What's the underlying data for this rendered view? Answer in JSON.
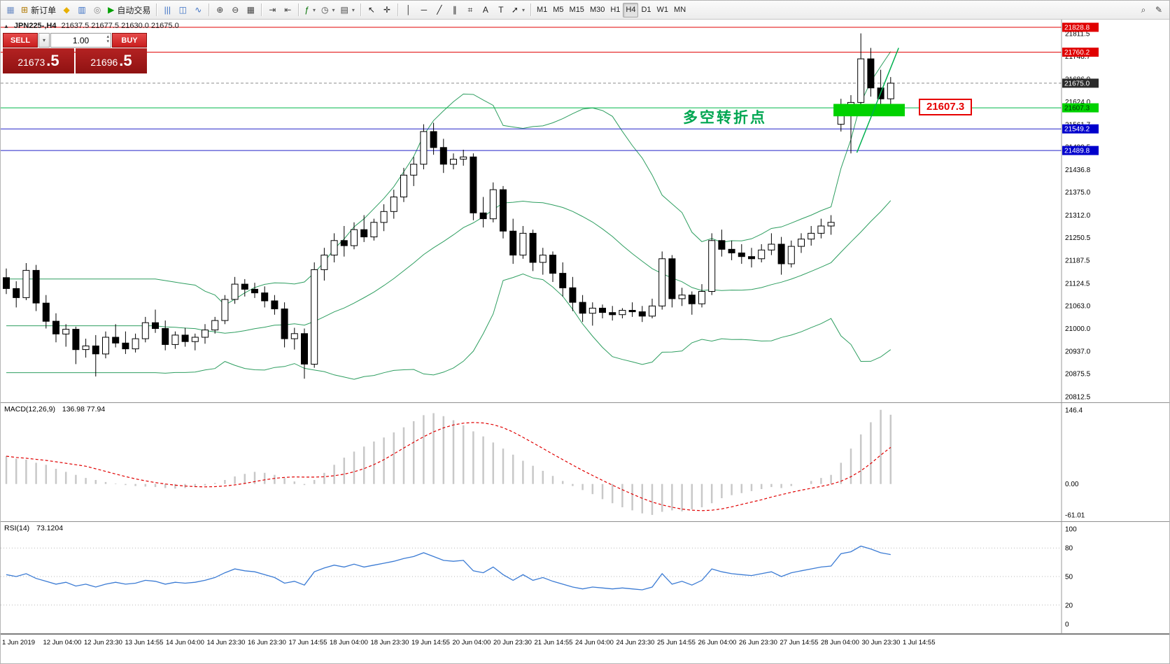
{
  "toolbar": {
    "groups": [
      {
        "items": [
          {
            "name": "chart-window-icon",
            "glyph": "▦",
            "color": "#6d8dc4"
          },
          {
            "name": "new-order-button",
            "glyph": "⊞",
            "color": "#b07800",
            "label": "新订单"
          },
          {
            "name": "market-watch-button",
            "glyph": "◆",
            "color": "#e8b000"
          },
          {
            "name": "data-window-button",
            "glyph": "▥",
            "color": "#3a6fc4"
          },
          {
            "name": "navigator-button",
            "glyph": "◎",
            "color": "#888888"
          },
          {
            "name": "autotrading-button",
            "glyph": "▶",
            "color": "#00a000",
            "label": "自动交易"
          }
        ]
      },
      {
        "items": [
          {
            "name": "bar-chart-button",
            "glyph": "|||",
            "color": "#3a6fc4"
          },
          {
            "name": "candlestick-chart-button",
            "glyph": "◫",
            "color": "#3a6fc4"
          },
          {
            "name": "line-chart-button",
            "glyph": "∿",
            "color": "#3a6fc4"
          }
        ]
      },
      {
        "items": [
          {
            "name": "zoom-in-button",
            "glyph": "⊕",
            "color": "#444444"
          },
          {
            "name": "zoom-out-button",
            "glyph": "⊖",
            "color": "#444444"
          },
          {
            "name": "tile-windows-button",
            "glyph": "▦",
            "color": "#444444"
          }
        ]
      },
      {
        "items": [
          {
            "name": "auto-scroll-button",
            "glyph": "⇥",
            "color": "#444444"
          },
          {
            "name": "chart-shift-button",
            "glyph": "⇤",
            "color": "#444444"
          }
        ]
      },
      {
        "items": [
          {
            "name": "indicators-button",
            "glyph": "ƒ",
            "color": "#007000",
            "dropdown": true
          },
          {
            "name": "periods-button",
            "glyph": "◷",
            "color": "#444444",
            "dropdown": true
          },
          {
            "name": "templates-button",
            "glyph": "▤",
            "color": "#444444",
            "dropdown": true
          }
        ]
      },
      {
        "items": [
          {
            "name": "cursor-button",
            "glyph": "↖",
            "color": "#222222"
          },
          {
            "name": "crosshair-button",
            "glyph": "✛",
            "color": "#222222"
          }
        ]
      },
      {
        "items": [
          {
            "name": "vertical-line-button",
            "glyph": "│",
            "color": "#222222"
          },
          {
            "name": "horizontal-line-button",
            "glyph": "─",
            "color": "#222222"
          },
          {
            "name": "trendline-button",
            "glyph": "╱",
            "color": "#222222"
          },
          {
            "name": "equidistant-channel-button",
            "glyph": "∥",
            "color": "#222222"
          },
          {
            "name": "fibonacci-button",
            "glyph": "⌗",
            "color": "#222222"
          },
          {
            "name": "text-button",
            "glyph": "A",
            "color": "#222222"
          },
          {
            "name": "text-label-button",
            "glyph": "T",
            "color": "#222222"
          },
          {
            "name": "arrows-button",
            "glyph": "➚",
            "color": "#222222",
            "dropdown": true
          }
        ]
      }
    ],
    "timeframes": [
      "M1",
      "M5",
      "M15",
      "M30",
      "H1",
      "H4",
      "D1",
      "W1",
      "MN"
    ],
    "active_timeframe": "H4",
    "right_items": [
      {
        "name": "search-button",
        "glyph": "⌕",
        "color": "#444444"
      },
      {
        "name": "quick-edit-button",
        "glyph": "✎",
        "color": "#444444"
      }
    ]
  },
  "icons": {
    "dropdown": "▾",
    "step_up": "▴",
    "step_down": "▾",
    "panel_toggle": "▲"
  },
  "chart": {
    "header_symbol": "JPN225-,H4",
    "header_ohlc": "21637.5 21677.5 21630.0 21675.0",
    "annotation": {
      "text": "多空转折点",
      "color": "#00a651"
    },
    "price_callout": {
      "text": "21607.3",
      "color": "#e60000"
    },
    "markers": [
      {
        "label": "21828.8",
        "price": 21828.8,
        "line": "#e00000",
        "bg": "#e00000",
        "fg": "#ffffff"
      },
      {
        "label": "21760.2",
        "price": 21760.2,
        "line": "#e00000",
        "bg": "#e00000",
        "fg": "#ffffff"
      },
      {
        "label": "21675.0",
        "price": 21675.0,
        "line": "#8a8a8a",
        "dash": true,
        "bg": "#2b2b2b",
        "fg": "#ffffff"
      },
      {
        "label": "21607.3",
        "price": 21607.3,
        "line": "#00b84a",
        "bg": "#00d200",
        "fg": "#00320a"
      },
      {
        "label": "21549.2",
        "price": 21549.2,
        "line": "#2424c8",
        "bg": "#0000cc",
        "fg": "#ffffff"
      },
      {
        "label": "21489.8",
        "price": 21489.8,
        "line": "#2424c8",
        "bg": "#0000cc",
        "fg": "#ffffff"
      }
    ],
    "rect_object": {
      "x_start_index": 83.6,
      "x_end": 1292,
      "price_top": 21618,
      "price_bottom": 21584,
      "color": "#00d200"
    },
    "trend_line": {
      "i1": 85.6,
      "p1": 21484,
      "i2": 89.8,
      "p2": 21772,
      "color": "#00b050"
    }
  },
  "trade_panel": {
    "sell_label": "SELL",
    "buy_label": "BUY",
    "lot": "1.00",
    "sell_price_main": "21673",
    "sell_price_big": ".5",
    "buy_price_main": "21696",
    "buy_price_big": ".5"
  },
  "chart_data": {
    "type": "candlestick",
    "symbol": "JPN225-",
    "timeframe": "H4",
    "ylim": [
      20795,
      21850
    ],
    "ohlc": [
      [
        21140,
        21165,
        21095,
        21110
      ],
      [
        21110,
        21130,
        21058,
        21085
      ],
      [
        21085,
        21180,
        21078,
        21160
      ],
      [
        21160,
        21175,
        21048,
        21070
      ],
      [
        21070,
        21092,
        21000,
        21020
      ],
      [
        21020,
        21042,
        20962,
        20985
      ],
      [
        20985,
        21012,
        20950,
        20998
      ],
      [
        20998,
        21005,
        20902,
        20942
      ],
      [
        20942,
        20972,
        20920,
        20952
      ],
      [
        20952,
        20982,
        20868,
        20930
      ],
      [
        20930,
        20992,
        20918,
        20976
      ],
      [
        20976,
        21012,
        20948,
        20960
      ],
      [
        20960,
        20992,
        20930,
        20944
      ],
      [
        20944,
        20986,
        20934,
        20972
      ],
      [
        20972,
        21032,
        20962,
        21016
      ],
      [
        21016,
        21052,
        20988,
        21000
      ],
      [
        21000,
        21022,
        20940,
        20956
      ],
      [
        20956,
        20992,
        20944,
        20982
      ],
      [
        20982,
        21002,
        20950,
        20964
      ],
      [
        20964,
        20986,
        20940,
        20976
      ],
      [
        20976,
        21012,
        20958,
        20996
      ],
      [
        20996,
        21032,
        20986,
        21022
      ],
      [
        21022,
        21092,
        21012,
        21080
      ],
      [
        21080,
        21142,
        21068,
        21122
      ],
      [
        21122,
        21136,
        21088,
        21108
      ],
      [
        21108,
        21126,
        21084,
        21098
      ],
      [
        21098,
        21116,
        21058,
        21076
      ],
      [
        21076,
        21092,
        21038,
        21054
      ],
      [
        21054,
        21072,
        20948,
        20972
      ],
      [
        20972,
        21002,
        20942,
        20986
      ],
      [
        20986,
        21000,
        20862,
        20902
      ],
      [
        20902,
        21182,
        20892,
        21162
      ],
      [
        21162,
        21222,
        21132,
        21202
      ],
      [
        21202,
        21262,
        21182,
        21242
      ],
      [
        21242,
        21282,
        21198,
        21228
      ],
      [
        21228,
        21292,
        21218,
        21272
      ],
      [
        21272,
        21312,
        21238,
        21252
      ],
      [
        21252,
        21302,
        21242,
        21292
      ],
      [
        21292,
        21342,
        21268,
        21322
      ],
      [
        21322,
        21382,
        21302,
        21362
      ],
      [
        21362,
        21442,
        21348,
        21422
      ],
      [
        21422,
        21472,
        21392,
        21452
      ],
      [
        21452,
        21562,
        21438,
        21542
      ],
      [
        21542,
        21566,
        21478,
        21498
      ],
      [
        21498,
        21522,
        21428,
        21452
      ],
      [
        21452,
        21482,
        21438,
        21466
      ],
      [
        21466,
        21492,
        21448,
        21472
      ],
      [
        21472,
        21482,
        21298,
        21318
      ],
      [
        21318,
        21362,
        21278,
        21302
      ],
      [
        21302,
        21402,
        21292,
        21382
      ],
      [
        21382,
        21392,
        21248,
        21268
      ],
      [
        21268,
        21302,
        21178,
        21202
      ],
      [
        21202,
        21282,
        21192,
        21262
      ],
      [
        21262,
        21272,
        21158,
        21182
      ],
      [
        21182,
        21222,
        21148,
        21202
      ],
      [
        21202,
        21212,
        21128,
        21152
      ],
      [
        21152,
        21182,
        21088,
        21112
      ],
      [
        21112,
        21142,
        21048,
        21072
      ],
      [
        21072,
        21092,
        21018,
        21042
      ],
      [
        21042,
        21072,
        21008,
        21056
      ],
      [
        21056,
        21066,
        21028,
        21044
      ],
      [
        21044,
        21062,
        21022,
        21038
      ],
      [
        21038,
        21056,
        21028,
        21050
      ],
      [
        21050,
        21072,
        21032,
        21046
      ],
      [
        21046,
        21062,
        21018,
        21034
      ],
      [
        21034,
        21082,
        21028,
        21062
      ],
      [
        21062,
        21212,
        21052,
        21192
      ],
      [
        21192,
        21202,
        21058,
        21082
      ],
      [
        21082,
        21112,
        21062,
        21092
      ],
      [
        21092,
        21102,
        21038,
        21068
      ],
      [
        21068,
        21122,
        21058,
        21102
      ],
      [
        21102,
        21262,
        21092,
        21242
      ],
      [
        21242,
        21272,
        21198,
        21218
      ],
      [
        21218,
        21242,
        21188,
        21208
      ],
      [
        21208,
        21232,
        21178,
        21198
      ],
      [
        21198,
        21222,
        21168,
        21192
      ],
      [
        21192,
        21232,
        21182,
        21216
      ],
      [
        21216,
        21262,
        21202,
        21232
      ],
      [
        21232,
        21252,
        21148,
        21178
      ],
      [
        21178,
        21242,
        21168,
        21226
      ],
      [
        21226,
        21262,
        21208,
        21246
      ],
      [
        21246,
        21282,
        21228,
        21262
      ],
      [
        21262,
        21302,
        21248,
        21282
      ],
      [
        21282,
        21312,
        21258,
        21292
      ],
      [
        21562,
        21632,
        21542,
        21612
      ],
      [
        21612,
        21642,
        21482,
        21622
      ],
      [
        21622,
        21812,
        21612,
        21742
      ],
      [
        21742,
        21772,
        21638,
        21662
      ],
      [
        21662,
        21712,
        21602,
        21632
      ],
      [
        21632,
        21692,
        21616,
        21675
      ]
    ],
    "price_scale_labels": [
      21811.5,
      21748.7,
      21686.0,
      21624.0,
      21561.7,
      21499.5,
      21436.8,
      21375.0,
      21312.0,
      21250.5,
      21187.5,
      21124.5,
      21063.0,
      21000.0,
      20937.0,
      20875.5,
      20812.5
    ],
    "time_labels": [
      "1 Jun 2019",
      "12 Jun 04:00",
      "12 Jun 23:30",
      "13 Jun 14:55",
      "14 Jun 04:00",
      "14 Jun 23:30",
      "16 Jun 23:30",
      "17 Jun 14:55",
      "18 Jun 04:00",
      "18 Jun 23:30",
      "19 Jun 14:55",
      "20 Jun 04:00",
      "20 Jun 23:30",
      "21 Jun 14:55",
      "24 Jun 04:00",
      "24 Jun 23:30",
      "25 Jun 14:55",
      "26 Jun 04:00",
      "26 Jun 23:30",
      "27 Jun 14:55",
      "28 Jun 04:00",
      "30 Jun 23:30",
      "1 Jul 14:55"
    ],
    "indicators": {
      "bollinger": {
        "period": 20,
        "deviation": 2,
        "color": "#2e9e60"
      },
      "macd": {
        "title": "MACD(12,26,9)",
        "values_text": "136.98 77.94",
        "scale_labels": [
          "146.4",
          "0.00",
          "-61.01"
        ],
        "ylim": [
          -75,
          160
        ],
        "bar_color": "#c8c8c8",
        "signal_color": "#e00000",
        "signal_period": 9,
        "histogram": [
          55,
          50,
          48,
          42,
          38,
          30,
          24,
          18,
          12,
          8,
          4,
          1,
          -2,
          -4,
          -5,
          -6,
          -8,
          -9,
          -8,
          -6,
          -3,
          2,
          8,
          15,
          20,
          24,
          22,
          18,
          12,
          5,
          -2,
          8,
          22,
          38,
          52,
          64,
          74,
          84,
          92,
          102,
          112,
          124,
          136,
          140,
          134,
          126,
          116,
          104,
          94,
          82,
          70,
          58,
          46,
          36,
          26,
          16,
          6,
          -4,
          -12,
          -20,
          -30,
          -38,
          -46,
          -52,
          -58,
          -61.01,
          -55,
          -52,
          -54,
          -50,
          -46,
          -38,
          -28,
          -22,
          -18,
          -14,
          -10,
          -6,
          -8,
          -4,
          0,
          6,
          12,
          18,
          42,
          70,
          98,
          122,
          146.4,
          136.98
        ]
      },
      "rsi": {
        "title": "RSI(14)",
        "value_text": "73.1204",
        "scale_labels": [
          100,
          80,
          50,
          20,
          0
        ],
        "levels": [
          80,
          50,
          20
        ],
        "ylim": [
          0,
          100
        ],
        "color": "#3b7bd4",
        "values": [
          52,
          50,
          53,
          48,
          45,
          42,
          44,
          40,
          42,
          39,
          42,
          44,
          42,
          43,
          46,
          45,
          42,
          44,
          43,
          44,
          46,
          49,
          54,
          58,
          56,
          55,
          52,
          49,
          43,
          45,
          41,
          55,
          59,
          62,
          60,
          63,
          60,
          62,
          64,
          66,
          69,
          71,
          75,
          71,
          67,
          66,
          67,
          56,
          54,
          60,
          52,
          46,
          52,
          46,
          49,
          45,
          42,
          39,
          37,
          39,
          38,
          37,
          38,
          37,
          36,
          39,
          53,
          42,
          45,
          41,
          46,
          58,
          55,
          53,
          52,
          51,
          53,
          55,
          50,
          54,
          56,
          58,
          60,
          61,
          74,
          76,
          82,
          79,
          75,
          73.12
        ]
      }
    }
  }
}
